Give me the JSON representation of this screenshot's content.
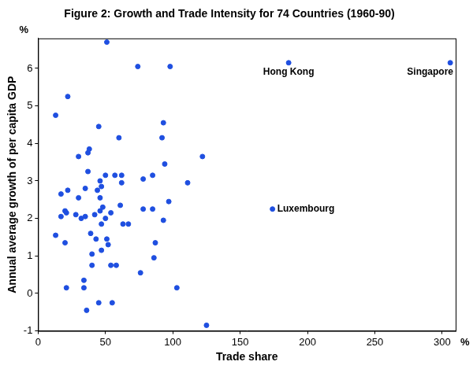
{
  "chart_data": {
    "type": "scatter",
    "title": "Figure 2: Growth and Trade Intensity for 74 Countries (1960-90)",
    "x_label": "Trade share",
    "y_label": "Annual average growth of per capita GDP",
    "x_unit": "%",
    "y_unit": "%",
    "color": "#1f4fe0",
    "marker": "circle",
    "grid": false,
    "xlim": [
      0,
      310
    ],
    "ylim": [
      -1,
      6.8
    ],
    "xticks": [
      0,
      50,
      100,
      150,
      200,
      250,
      300
    ],
    "yticks": [
      -1,
      0,
      1,
      2,
      3,
      4,
      5,
      6
    ],
    "x": [
      13,
      13,
      17,
      17,
      20,
      21,
      20,
      21,
      22,
      22,
      28,
      30,
      30,
      32,
      34,
      34,
      35,
      35,
      36,
      37,
      37,
      38,
      39,
      40,
      40,
      42,
      43,
      44,
      45,
      45,
      46,
      46,
      46,
      47,
      47,
      47,
      48,
      50,
      50,
      51,
      51,
      52,
      54,
      54,
      55,
      57,
      58,
      60,
      61,
      62,
      62,
      63,
      67,
      74,
      76,
      78,
      78,
      85,
      85,
      86,
      87,
      92,
      93,
      93,
      94,
      97,
      98,
      103,
      111,
      122,
      125,
      186,
      306,
      174
    ],
    "values": [
      4.75,
      1.55,
      2.65,
      2.05,
      2.2,
      2.15,
      1.35,
      0.15,
      5.25,
      2.75,
      2.1,
      2.55,
      3.65,
      2.0,
      0.35,
      0.15,
      2.05,
      2.8,
      -0.45,
      3.25,
      3.75,
      3.85,
      1.6,
      1.05,
      0.75,
      2.1,
      1.45,
      2.75,
      4.45,
      -0.25,
      3.0,
      2.55,
      2.2,
      2.85,
      1.85,
      1.15,
      2.3,
      3.15,
      2.0,
      1.45,
      6.7,
      1.3,
      2.15,
      0.75,
      -0.25,
      3.15,
      0.75,
      4.15,
      2.35,
      3.15,
      2.95,
      1.85,
      1.85,
      6.05,
      0.55,
      3.05,
      2.25,
      3.15,
      2.25,
      0.95,
      1.35,
      4.15,
      4.55,
      1.95,
      3.45,
      2.45,
      6.05,
      0.15,
      2.95,
      3.65,
      -0.85,
      6.15,
      6.15,
      2.25
    ],
    "annotations": [
      {
        "text": "Hong Kong",
        "x": 186,
        "y": 6.15
      },
      {
        "text": "Singapore",
        "x": 306,
        "y": 6.15
      },
      {
        "text": "Luxembourg",
        "x": 174,
        "y": 2.25
      }
    ]
  }
}
